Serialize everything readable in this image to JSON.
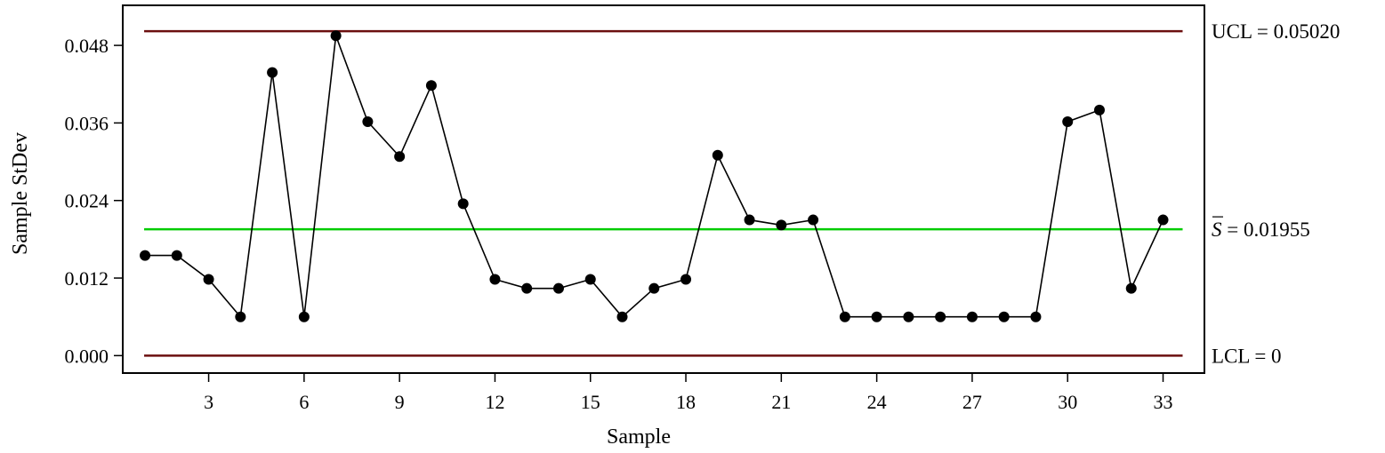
{
  "chart_data": {
    "type": "line",
    "title": "",
    "xlabel": "Sample",
    "ylabel": "Sample StDev",
    "xlim": [
      0.3,
      34.3
    ],
    "ylim": [
      -0.0027,
      0.0542
    ],
    "x_ticks": [
      3,
      6,
      9,
      12,
      15,
      18,
      21,
      24,
      27,
      30,
      33
    ],
    "y_ticks": [
      "0.000",
      "0.012",
      "0.024",
      "0.036",
      "0.048"
    ],
    "grid": false,
    "series": [
      {
        "x": [
          1,
          2,
          3,
          4,
          5,
          6,
          7,
          8,
          9,
          10,
          11,
          12,
          13,
          14,
          15,
          16,
          17,
          18,
          19,
          20,
          21,
          22,
          23,
          24,
          25,
          26,
          27,
          28,
          29,
          30,
          31,
          32,
          33
        ],
        "values": [
          0.0155,
          0.0155,
          0.0118,
          0.006,
          0.0438,
          0.006,
          0.0495,
          0.0362,
          0.0308,
          0.0418,
          0.0235,
          0.0118,
          0.0104,
          0.0104,
          0.0118,
          0.006,
          0.0104,
          0.0118,
          0.031,
          0.021,
          0.0202,
          0.021,
          0.006,
          0.006,
          0.006,
          0.006,
          0.006,
          0.006,
          0.006,
          0.0362,
          0.038,
          0.0104,
          0.021
        ],
        "color": "#000000"
      }
    ],
    "reference_lines": [
      {
        "id": "ucl",
        "value": 0.0502,
        "label": "UCL = 0.05020",
        "color": "#6b0f0f"
      },
      {
        "id": "center",
        "value": 0.01955,
        "symbol": "S",
        "label": " = 0.01955",
        "color": "#00cc00"
      },
      {
        "id": "lcl",
        "value": 0.0,
        "label": "LCL = 0",
        "color": "#6b0f0f"
      }
    ]
  }
}
